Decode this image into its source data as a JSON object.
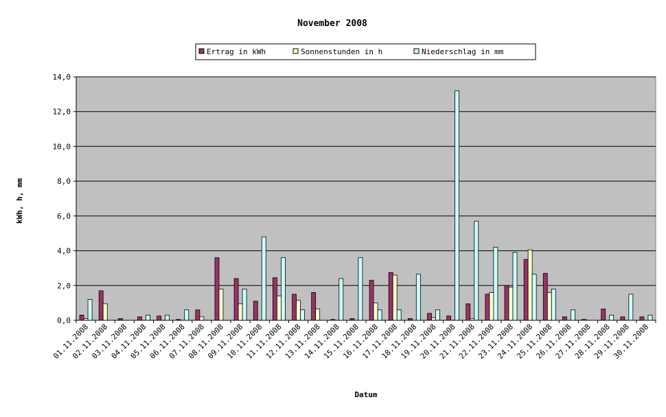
{
  "chart_data": {
    "type": "bar",
    "title": "November 2008",
    "xlabel": "Datum",
    "ylabel": "kWh, h, mm",
    "ylim": [
      0,
      14
    ],
    "ytick_step": 2,
    "ytick_labels": [
      "0,0",
      "2,0",
      "4,0",
      "6,0",
      "8,0",
      "10,0",
      "12,0",
      "14,0"
    ],
    "grid": true,
    "legend_position": "top",
    "plot_background": "#c0c0c0",
    "categories": [
      "01.11.2008",
      "02.11.2008",
      "03.11.2008",
      "04.11.2008",
      "05.11.2008",
      "06.11.2008",
      "07.11.2008",
      "08.11.2008",
      "09.11.2008",
      "10.11.2008",
      "11.11.2008",
      "12.11.2008",
      "13.11.2008",
      "14.11.2008",
      "15.11.2008",
      "16.11.2008",
      "17.11.2008",
      "18.11.2008",
      "19.11.2008",
      "20.11.2008",
      "21.11.2008",
      "22.11.2008",
      "23.11.2008",
      "24.11.2008",
      "25.11.2008",
      "26.11.2008",
      "27.11.2008",
      "28.11.2008",
      "29.11.2008",
      "30.11.2008"
    ],
    "series": [
      {
        "name": "Ertrag in kWh",
        "color": "#993366",
        "values": [
          0.3,
          1.7,
          0.1,
          0.2,
          0.25,
          0.05,
          0.6,
          3.6,
          2.4,
          1.1,
          2.45,
          1.5,
          1.6,
          0.05,
          0.1,
          2.3,
          2.75,
          0.1,
          0.4,
          0.25,
          0.95,
          1.5,
          2.0,
          3.5,
          2.7,
          0.2,
          0.05,
          0.65,
          0.2,
          0.2
        ]
      },
      {
        "name": "Sonnenstunden in h",
        "color": "#ffffcc",
        "values": [
          0.1,
          0.95,
          0.0,
          0.0,
          0.0,
          0.0,
          0.2,
          1.8,
          0.95,
          0.0,
          1.4,
          1.15,
          0.65,
          0.0,
          0.0,
          1.0,
          2.6,
          0.0,
          0.15,
          0.0,
          0.1,
          1.6,
          1.9,
          4.05,
          1.6,
          0.0,
          0.0,
          0.0,
          0.0,
          0.0
        ]
      },
      {
        "name": "Niederschlag in mm",
        "color": "#ccffff",
        "values": [
          1.2,
          0.0,
          0.0,
          0.3,
          0.3,
          0.6,
          0.0,
          0.0,
          1.8,
          4.8,
          3.6,
          0.6,
          0.0,
          2.4,
          3.6,
          0.6,
          0.6,
          2.65,
          0.6,
          13.2,
          5.7,
          4.2,
          3.9,
          2.65,
          1.8,
          0.6,
          0.0,
          0.3,
          1.5,
          0.3
        ]
      }
    ]
  }
}
